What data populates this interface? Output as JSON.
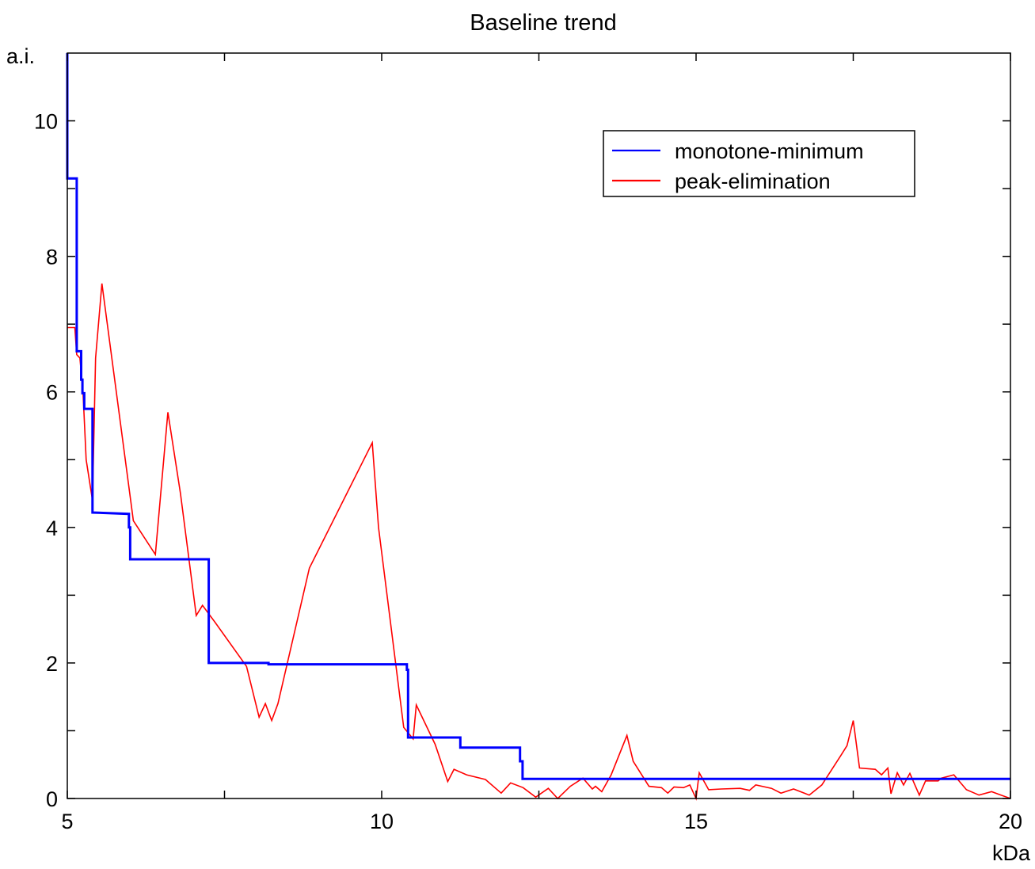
{
  "chart_data": {
    "type": "line",
    "title": "Baseline trend",
    "ylabel": "a.i.",
    "xlabel": "kDa",
    "xlim": [
      5,
      20
    ],
    "ylim": [
      0,
      11
    ],
    "x_ticks": [
      5,
      10,
      15,
      20
    ],
    "y_ticks": [
      0,
      2,
      4,
      6,
      8,
      10
    ],
    "x_tick_labels": [
      "5",
      "10",
      "15",
      "20"
    ],
    "y_tick_labels": [
      "0",
      "2",
      "4",
      "6",
      "8",
      "10"
    ],
    "grid": false,
    "legend_position": "top-right",
    "series": [
      {
        "name": "monotone-minimum",
        "color": "#0000ff",
        "x": [
          5.0,
          5.0,
          5.02,
          5.02,
          5.15,
          5.15,
          5.15,
          5.22,
          5.22,
          5.24,
          5.24,
          5.27,
          5.27,
          5.35,
          5.35,
          5.4,
          5.4,
          5.98,
          5.98,
          6.0,
          6.0,
          7.25,
          7.25,
          8.2,
          8.2,
          10.4,
          10.4,
          10.42,
          10.42,
          11.25,
          11.25,
          12.2,
          12.2,
          12.24,
          12.24,
          20.0
        ],
        "y": [
          11.0,
          9.15,
          9.15,
          9.15,
          9.15,
          8.8,
          6.6,
          6.6,
          6.18,
          6.18,
          5.98,
          5.98,
          5.75,
          5.75,
          5.75,
          5.75,
          4.22,
          4.2,
          4.0,
          4.0,
          3.53,
          3.53,
          2.0,
          2.0,
          1.98,
          1.98,
          1.9,
          1.9,
          0.9,
          0.9,
          0.75,
          0.75,
          0.55,
          0.55,
          0.29,
          0.29
        ]
      },
      {
        "name": "peak-elimination",
        "color": "#ff0000",
        "x": [
          5.0,
          5.12,
          5.15,
          5.2,
          5.25,
          5.3,
          5.4,
          5.45,
          5.55,
          5.75,
          6.05,
          6.4,
          6.6,
          6.8,
          7.05,
          7.15,
          7.35,
          7.85,
          8.05,
          8.15,
          8.25,
          8.35,
          8.85,
          9.85,
          9.95,
          10.35,
          10.5,
          10.55,
          10.85,
          11.05,
          11.15,
          11.35,
          11.65,
          11.9,
          12.05,
          12.25,
          12.45,
          12.65,
          12.8,
          13.0,
          13.2,
          13.35,
          13.4,
          13.5,
          13.65,
          13.9,
          14.0,
          14.25,
          14.45,
          14.55,
          14.65,
          14.8,
          14.9,
          15.0,
          15.05,
          15.2,
          15.4,
          15.7,
          15.85,
          15.95,
          16.2,
          16.35,
          16.55,
          16.8,
          17.0,
          17.3,
          17.4,
          17.5,
          17.6,
          17.85,
          17.95,
          18.05,
          18.1,
          18.2,
          18.3,
          18.4,
          18.55,
          18.65,
          18.85,
          18.9,
          19.1,
          19.3,
          19.5,
          19.7,
          19.85,
          20.0
        ],
        "y": [
          6.95,
          6.95,
          6.55,
          6.5,
          6.0,
          5.0,
          4.4,
          6.5,
          7.6,
          6.2,
          4.1,
          3.6,
          5.7,
          4.5,
          2.7,
          2.85,
          2.6,
          1.95,
          1.2,
          1.4,
          1.15,
          1.4,
          3.4,
          5.25,
          4.0,
          1.05,
          0.88,
          1.38,
          0.8,
          0.25,
          0.43,
          0.35,
          0.28,
          0.08,
          0.23,
          0.16,
          0.02,
          0.15,
          0.0,
          0.18,
          0.3,
          0.14,
          0.18,
          0.1,
          0.35,
          0.93,
          0.55,
          0.18,
          0.16,
          0.08,
          0.17,
          0.16,
          0.2,
          0.0,
          0.38,
          0.13,
          0.14,
          0.15,
          0.12,
          0.2,
          0.15,
          0.08,
          0.14,
          0.05,
          0.2,
          0.63,
          0.78,
          1.15,
          0.45,
          0.43,
          0.35,
          0.45,
          0.07,
          0.38,
          0.2,
          0.37,
          0.05,
          0.26,
          0.26,
          0.3,
          0.35,
          0.13,
          0.05,
          0.1,
          0.05,
          0.0
        ]
      }
    ]
  }
}
